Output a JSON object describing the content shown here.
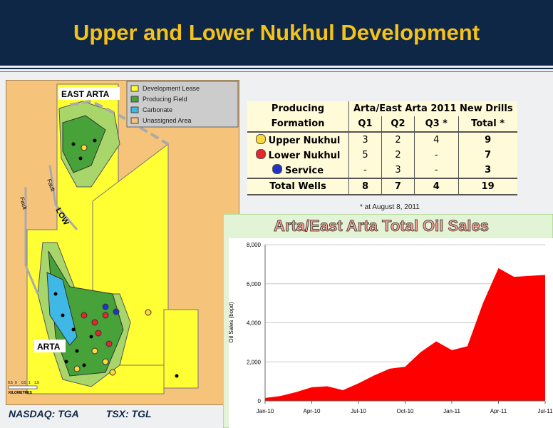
{
  "title": "Upper and Lower Nukhul Development",
  "map": {
    "legend": [
      "Development Lease",
      "Producing Field",
      "Carbonate",
      "Unassigned Area"
    ],
    "labels": [
      "EAST ARTA",
      "ARTA",
      "LOW",
      "Fault",
      "Fault"
    ],
    "scale_ticks": [
      "0.5",
      "0",
      "0.5",
      "1",
      "1.5"
    ],
    "scale_unit": "KILOMETRES"
  },
  "table": {
    "header": [
      [
        "Producing",
        "Arta/East Arta 2011 New Drills"
      ],
      [
        "Formation",
        "Q1",
        "Q2",
        "Q3 *",
        "Total *"
      ]
    ],
    "rows": [
      [
        "Upper Nukhul",
        3,
        2,
        4,
        9
      ],
      [
        "Lower Nukhul",
        5,
        2,
        "-",
        7
      ],
      [
        "Service",
        "-",
        3,
        "-",
        3
      ],
      [
        "Total Wells",
        8,
        7,
        4,
        19
      ]
    ],
    "footnote": "* at August 8, 2011"
  },
  "chart_data": {
    "type": "area",
    "title": "Arta/East Arta Total Oil Sales",
    "ylabel": "Oil Sales (bopd)",
    "categories": [
      "Jan-10",
      null,
      null,
      "Apr-10",
      null,
      null,
      "Jul-10",
      null,
      null,
      "Oct-10",
      null,
      null,
      "Jan-11",
      null,
      null,
      "Apr-11",
      null,
      null,
      "Jul-11"
    ],
    "values": [
      150,
      250,
      450,
      700,
      750,
      550,
      900,
      1300,
      1650,
      1750,
      2500,
      3050,
      2600,
      2800,
      5000,
      6800,
      6350,
      6400,
      6450
    ],
    "color": "#ff0000",
    "ylim": [
      0,
      8000
    ],
    "yticks": [
      0,
      {
        "value": 2000,
        "label": "2,000"
      },
      {
        "value": 4000,
        "label": "4,000"
      },
      {
        "value": 6000,
        "label": "6,000"
      },
      {
        "value": 8000,
        "label": "8,000"
      }
    ],
    "grid": true
  },
  "footer": [
    "NASDAQ: TGA",
    "TSX: TGL"
  ]
}
